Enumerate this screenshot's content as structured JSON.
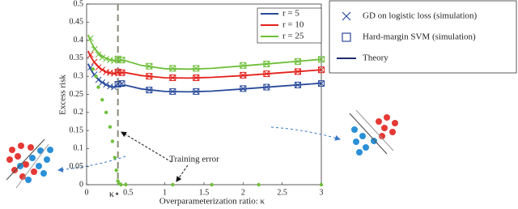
{
  "chart_data": {
    "type": "line",
    "xlabel": "Overparameterization ratio:  κ",
    "ylabel": "Excess risk",
    "xlim": [
      0,
      3
    ],
    "ylim": [
      0,
      0.5
    ],
    "xticks": [
      0,
      0.5,
      1,
      1.5,
      2,
      2.5,
      3
    ],
    "yticks": [
      0,
      0.05,
      0.1,
      0.15,
      0.2,
      0.25,
      0.3,
      0.35,
      0.4,
      0.45,
      0.5
    ],
    "kappa_star": {
      "value": 0.4,
      "label": "κ⋆"
    },
    "x": [
      0.02,
      0.05,
      0.1,
      0.15,
      0.2,
      0.25,
      0.3,
      0.35,
      0.4,
      0.5,
      0.7,
      1,
      1.3,
      1.6,
      2,
      2.5,
      3
    ],
    "series": [
      {
        "name": "r = 5",
        "color": "#2a4b9b",
        "values": [
          0.335,
          0.32,
          0.303,
          0.292,
          0.283,
          0.276,
          0.272,
          0.27,
          0.272,
          0.275,
          0.265,
          0.258,
          0.257,
          0.259,
          0.265,
          0.273,
          0.281
        ]
      },
      {
        "name": "r = 10",
        "color": "#e3211c",
        "values": [
          0.37,
          0.355,
          0.338,
          0.327,
          0.318,
          0.312,
          0.309,
          0.308,
          0.31,
          0.31,
          0.302,
          0.296,
          0.295,
          0.297,
          0.302,
          0.31,
          0.318
        ]
      },
      {
        "name": "r = 25",
        "color": "#6fbf3a",
        "values": [
          0.415,
          0.398,
          0.378,
          0.365,
          0.356,
          0.35,
          0.346,
          0.344,
          0.345,
          0.343,
          0.33,
          0.321,
          0.32,
          0.322,
          0.329,
          0.338,
          0.347
        ]
      }
    ],
    "simulations": [
      {
        "name": "GD on logistic loss (simulation)",
        "marker": "cross",
        "x": [
          0.05,
          0.1,
          0.15,
          0.2,
          0.25,
          0.3,
          0.35,
          0.4,
          0.45,
          0.8,
          1.1,
          1.4,
          2,
          2.3,
          2.7,
          3
        ],
        "values": [
          [
            0.325,
            0.305,
            0.29,
            0.283,
            0.277,
            0.272,
            0.27,
            0.278,
            0.28,
            0.262,
            0.258,
            0.258,
            0.266,
            0.27,
            0.276,
            0.28
          ],
          [
            0.36,
            0.34,
            0.325,
            0.318,
            0.312,
            0.31,
            0.308,
            0.312,
            0.31,
            0.3,
            0.296,
            0.296,
            0.303,
            0.307,
            0.313,
            0.318
          ],
          [
            0.405,
            0.375,
            0.36,
            0.352,
            0.348,
            0.345,
            0.343,
            0.348,
            0.345,
            0.328,
            0.322,
            0.322,
            0.33,
            0.334,
            0.341,
            0.347
          ]
        ]
      },
      {
        "name": "Hard-margin SVM (simulation)",
        "marker": "square",
        "x": [
          0.4,
          0.45,
          0.8,
          1.1,
          1.4,
          2,
          2.3,
          2.7,
          3
        ],
        "values": [
          [
            0.278,
            0.28,
            0.262,
            0.258,
            0.258,
            0.266,
            0.27,
            0.276,
            0.28
          ],
          [
            0.312,
            0.31,
            0.3,
            0.296,
            0.296,
            0.303,
            0.307,
            0.313,
            0.318
          ],
          [
            0.348,
            0.345,
            0.328,
            0.322,
            0.322,
            0.33,
            0.334,
            0.341,
            0.347
          ]
        ]
      }
    ],
    "theory_legend": {
      "name": "Theory",
      "color": "#1f2d6e"
    },
    "training_error": {
      "label": "Training error",
      "color": "#6fbf3a",
      "x": [
        0.08,
        0.12,
        0.15,
        0.2,
        0.25,
        0.3,
        0.33,
        0.36,
        0.38,
        0.4,
        0.42,
        0.44,
        0.5,
        1.1,
        1.6,
        2.2,
        3
      ],
      "values": [
        0.32,
        0.3,
        0.27,
        0.235,
        0.2,
        0.16,
        0.12,
        0.075,
        0.04,
        0.01,
        0.003,
        0,
        0,
        0,
        0,
        0,
        0
      ]
    }
  }
}
